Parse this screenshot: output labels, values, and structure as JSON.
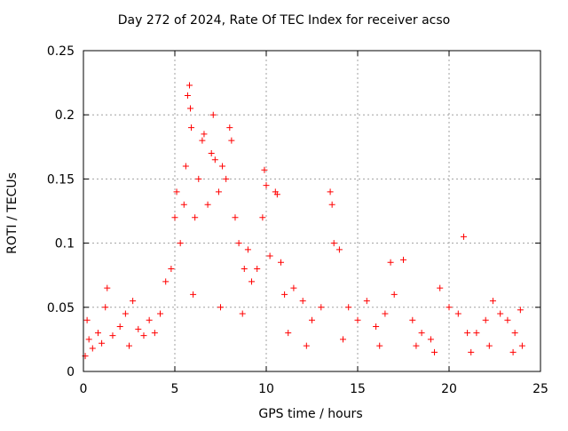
{
  "chart_data": {
    "type": "scatter",
    "title": "Day 272 of 2024, Rate Of TEC Index for receiver acso",
    "xlabel": "GPS time / hours",
    "ylabel": "ROTI / TECUs",
    "xlim": [
      0,
      25
    ],
    "ylim": [
      0,
      0.25
    ],
    "xticks": [
      "0",
      "5",
      "10",
      "15",
      "20",
      "25"
    ],
    "yticks": [
      "0",
      "0.05",
      "0.1",
      "0.15",
      "0.2",
      "0.25"
    ],
    "grid": true,
    "marker": "+",
    "color": "#ff0000",
    "series": [
      {
        "points": [
          [
            0.1,
            0.012
          ],
          [
            0.3,
            0.025
          ],
          [
            0.5,
            0.018
          ],
          [
            0.8,
            0.03
          ],
          [
            1.0,
            0.022
          ],
          [
            1.2,
            0.05
          ],
          [
            1.3,
            0.065
          ],
          [
            1.6,
            0.028
          ],
          [
            2.0,
            0.035
          ],
          [
            2.3,
            0.045
          ],
          [
            2.5,
            0.02
          ],
          [
            2.7,
            0.055
          ],
          [
            3.0,
            0.033
          ],
          [
            3.3,
            0.028
          ],
          [
            3.6,
            0.04
          ],
          [
            3.9,
            0.03
          ],
          [
            4.2,
            0.045
          ],
          [
            4.5,
            0.07
          ],
          [
            4.8,
            0.08
          ],
          [
            5.0,
            0.12
          ],
          [
            5.1,
            0.14
          ],
          [
            5.3,
            0.1
          ],
          [
            5.5,
            0.13
          ],
          [
            5.6,
            0.16
          ],
          [
            5.7,
            0.215
          ],
          [
            5.8,
            0.223
          ],
          [
            5.85,
            0.205
          ],
          [
            5.9,
            0.19
          ],
          [
            6.1,
            0.12
          ],
          [
            6.3,
            0.15
          ],
          [
            6.5,
            0.18
          ],
          [
            6.6,
            0.185
          ],
          [
            6.8,
            0.13
          ],
          [
            7.0,
            0.17
          ],
          [
            7.1,
            0.2
          ],
          [
            7.2,
            0.165
          ],
          [
            7.4,
            0.14
          ],
          [
            7.6,
            0.16
          ],
          [
            7.8,
            0.15
          ],
          [
            8.0,
            0.19
          ],
          [
            8.1,
            0.18
          ],
          [
            8.3,
            0.12
          ],
          [
            8.5,
            0.1
          ],
          [
            8.8,
            0.08
          ],
          [
            9.0,
            0.095
          ],
          [
            9.2,
            0.07
          ],
          [
            9.5,
            0.08
          ],
          [
            9.8,
            0.12
          ],
          [
            9.9,
            0.157
          ],
          [
            10.0,
            0.145
          ],
          [
            10.2,
            0.09
          ],
          [
            10.5,
            0.14
          ],
          [
            10.6,
            0.138
          ],
          [
            10.8,
            0.085
          ],
          [
            11.0,
            0.06
          ],
          [
            11.5,
            0.065
          ],
          [
            12.0,
            0.055
          ],
          [
            12.5,
            0.04
          ],
          [
            13.0,
            0.05
          ],
          [
            13.5,
            0.14
          ],
          [
            13.6,
            0.13
          ],
          [
            13.7,
            0.1
          ],
          [
            14.0,
            0.095
          ],
          [
            14.5,
            0.05
          ],
          [
            15.0,
            0.04
          ],
          [
            15.5,
            0.055
          ],
          [
            16.0,
            0.035
          ],
          [
            16.5,
            0.045
          ],
          [
            16.8,
            0.085
          ],
          [
            17.0,
            0.06
          ],
          [
            17.5,
            0.087
          ],
          [
            18.0,
            0.04
          ],
          [
            18.5,
            0.03
          ],
          [
            19.0,
            0.025
          ],
          [
            19.5,
            0.065
          ],
          [
            20.0,
            0.05
          ],
          [
            20.5,
            0.045
          ],
          [
            20.8,
            0.105
          ],
          [
            21.0,
            0.03
          ],
          [
            21.5,
            0.03
          ],
          [
            22.0,
            0.04
          ],
          [
            22.4,
            0.055
          ],
          [
            22.8,
            0.045
          ],
          [
            23.2,
            0.04
          ],
          [
            23.6,
            0.03
          ],
          [
            23.9,
            0.048
          ],
          [
            24.0,
            0.02
          ],
          [
            0.2,
            0.04
          ],
          [
            6.0,
            0.06
          ],
          [
            7.5,
            0.05
          ],
          [
            8.7,
            0.045
          ],
          [
            11.2,
            0.03
          ],
          [
            12.2,
            0.02
          ],
          [
            14.2,
            0.025
          ],
          [
            16.2,
            0.02
          ],
          [
            18.2,
            0.02
          ],
          [
            19.2,
            0.015
          ],
          [
            21.2,
            0.015
          ],
          [
            22.2,
            0.02
          ],
          [
            23.5,
            0.015
          ]
        ]
      }
    ]
  }
}
